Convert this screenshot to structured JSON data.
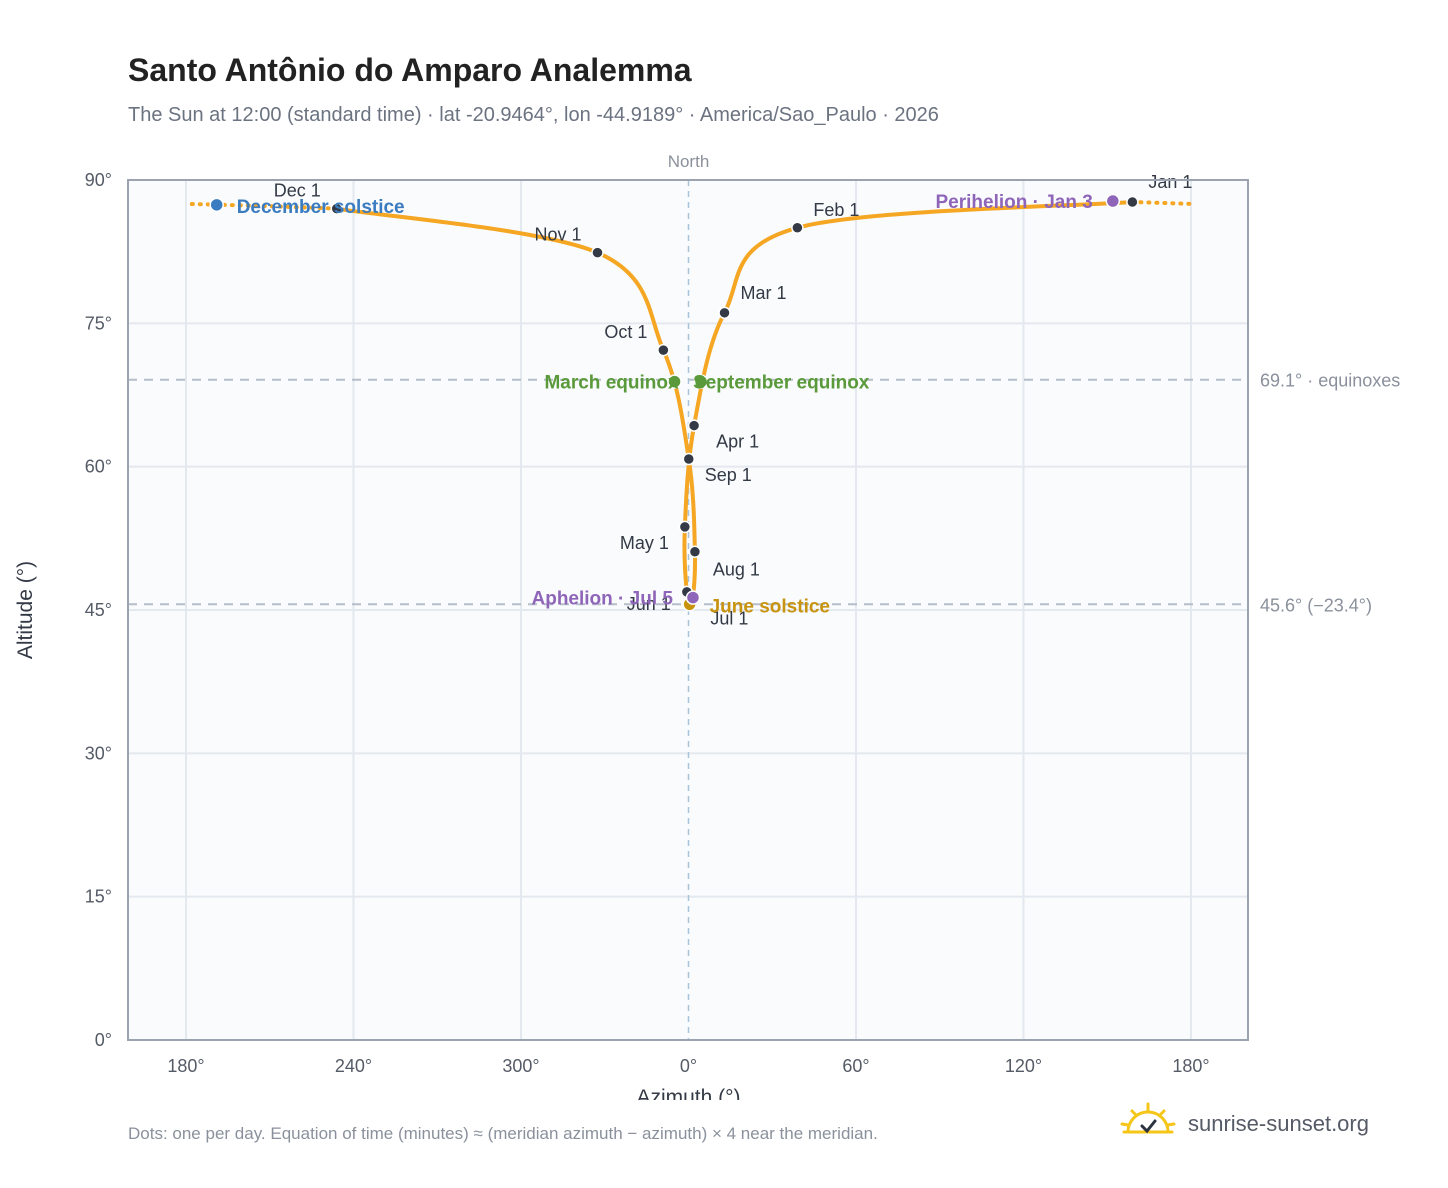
{
  "header": {
    "title": "Santo Antônio do Amparo Analemma",
    "subtitle": "The Sun at 12:00 (standard time) · lat -20.9464°, lon -44.9189° · America/Sao_Paulo · 2026"
  },
  "footer": {
    "note": "Dots: one per day. Equation of time (minutes) ≈ (meridian azimuth − azimuth) × 4 near the meridian.",
    "brand": "sunrise-sunset.org",
    "brand_icon": "sun-logo-icon"
  },
  "colors": {
    "curve": "#f5a623",
    "month_marker": "#333a45",
    "solstice_dec": "#3b7cc1",
    "solstice_jun": "#c8930f",
    "equinox": "#5a9a3a",
    "apsis": "#8e65b8",
    "plot_bg": "#f9fbfd",
    "grid": "#e4e9ef",
    "ref_line": "#b5bec9"
  },
  "chart_data": {
    "type": "scatter",
    "title": "Santo Antônio do Amparo Analemma",
    "xlabel": "Azimuth (°)",
    "ylabel": "Altitude (°)",
    "x_ticks": [
      "180°",
      "240°",
      "300°",
      "0°",
      "60°",
      "120°",
      "180°"
    ],
    "y_ticks": [
      "0°",
      "15°",
      "30°",
      "45°",
      "60°",
      "75°",
      "90°"
    ],
    "xlim": [
      160,
      200
    ],
    "x_axis_note": "azimuth wraps through North (0°) at the center; 180° at both ends",
    "ylim": [
      0,
      90
    ],
    "north_label": "North",
    "grid": true,
    "reference_lines": [
      {
        "altitude": 69.1,
        "label": "69.1° · equinoxes"
      },
      {
        "altitude": 45.6,
        "label": "45.6° (−23.4°)"
      }
    ],
    "month_markers": [
      {
        "label": "Jan 1",
        "azimuth": 159.0,
        "altitude": 87.7
      },
      {
        "label": "Feb 1",
        "azimuth": 39.0,
        "altitude": 85.0
      },
      {
        "label": "Mar 1",
        "azimuth": 12.9,
        "altitude": 76.1
      },
      {
        "label": "Apr 1",
        "azimuth": 2.0,
        "altitude": 64.3
      },
      {
        "label": "May 1",
        "azimuth": 358.7,
        "altitude": 53.7
      },
      {
        "label": "Jun 1",
        "azimuth": 359.4,
        "altitude": 46.9
      },
      {
        "label": "Jul 1",
        "azimuth": 1.4,
        "altitude": 46.2
      },
      {
        "label": "Aug 1",
        "azimuth": 2.3,
        "altitude": 51.1
      },
      {
        "label": "Sep 1",
        "azimuth": 0.1,
        "altitude": 60.8
      },
      {
        "label": "Oct 1",
        "azimuth": 351.0,
        "altitude": 72.2
      },
      {
        "label": "Nov 1",
        "azimuth": 327.4,
        "altitude": 82.4
      },
      {
        "label": "Dec 1",
        "azimuth": 234.0,
        "altitude": 87.0
      }
    ],
    "events": [
      {
        "label": "December solstice",
        "azimuth": 191.0,
        "altitude": 87.4,
        "kind": "solstice_dec"
      },
      {
        "label": "June solstice",
        "azimuth": 0.4,
        "altitude": 45.6,
        "kind": "solstice_jun"
      },
      {
        "label": "March equinox",
        "azimuth": 355.0,
        "altitude": 68.9,
        "kind": "equinox"
      },
      {
        "label": "September equinox",
        "azimuth": 4.5,
        "altitude": 68.9,
        "kind": "equinox"
      },
      {
        "label": "Perihelion · Jan 3",
        "azimuth": 152.0,
        "altitude": 87.8,
        "kind": "apsis"
      },
      {
        "label": "Aphelion · Jul 5",
        "azimuth": 1.6,
        "altitude": 46.3,
        "kind": "apsis"
      }
    ]
  }
}
